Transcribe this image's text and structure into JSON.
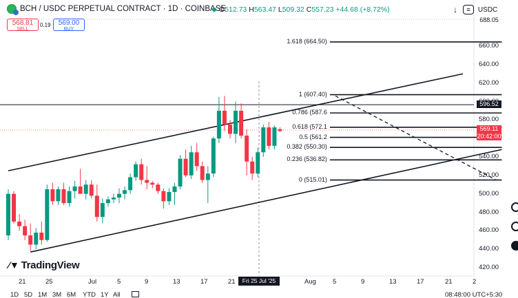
{
  "header": {
    "title": "BCH / USDC PERPETUAL CONTRACT · 1D · COINBASE",
    "open_label": "O",
    "open": "512.73",
    "high_label": "H",
    "high": "563.47",
    "low_label": "L",
    "low": "509.32",
    "close_label": "C",
    "close": "557.23",
    "change": "+44.68 (+8.72%)",
    "currency": "USDC",
    "dot_color": "#089981"
  },
  "trade": {
    "sell_price": "568.81",
    "sell_label": "SELL",
    "spread": "0.19",
    "buy_price": "569.00",
    "buy_label": "BUY"
  },
  "price_axis": {
    "ticks": [
      "660.00",
      "640.00",
      "620.00",
      "600.00",
      "580.00",
      "560.00",
      "540.00",
      "520.00",
      "500.00",
      "480.00",
      "460.00",
      "440.00",
      "420.00"
    ],
    "top_partial": "688.05",
    "hline_tag": "596.52",
    "last_price": "569.11",
    "countdown": "20:42:00"
  },
  "time_axis": {
    "labels": [
      "21",
      "25",
      "Jul",
      "5",
      "9",
      "13",
      "17",
      "21",
      "Aug",
      "5",
      "9",
      "13",
      "17",
      "21",
      "2"
    ],
    "cursor_label": "Fri 25 Jul '25"
  },
  "fib_levels": [
    {
      "label": "1.618 (664.50)",
      "price": 664.5
    },
    {
      "label": "1 (607.40)",
      "price": 607.4
    },
    {
      "label": "0.786 (587.6",
      "price": 587.6
    },
    {
      "label": "0.618 (572.1",
      "price": 572.1
    },
    {
      "label": "0.5 (561.2",
      "price": 561.2
    },
    {
      "label": "0.382 (550.30)",
      "price": 550.3
    },
    {
      "label": "0.236 (536.82)",
      "price": 536.82
    },
    {
      "label": "0 (515.01)",
      "price": 515.01
    }
  ],
  "timeframes": [
    "1D",
    "5D",
    "1M",
    "3M",
    "6M",
    "YTD",
    "1Y",
    "All"
  ],
  "footer": {
    "clock": "08:48:00 UTC+5:30"
  },
  "branding": {
    "logo_text": "TradingView"
  },
  "colors": {
    "up": "#089981",
    "down": "#f23645",
    "ink": "#131722",
    "buy": "#2962ff"
  },
  "chart_data": {
    "type": "candlestick",
    "title": "BCH / USDC PERPETUAL CONTRACT · 1D · COINBASE",
    "ylim": [
      410,
      690
    ],
    "candles": [
      {
        "o": 455,
        "h": 505,
        "l": 450,
        "c": 500
      },
      {
        "o": 500,
        "h": 503,
        "l": 468,
        "c": 470
      },
      {
        "o": 470,
        "h": 478,
        "l": 460,
        "c": 465
      },
      {
        "o": 465,
        "h": 472,
        "l": 450,
        "c": 455
      },
      {
        "o": 455,
        "h": 468,
        "l": 438,
        "c": 445
      },
      {
        "o": 445,
        "h": 463,
        "l": 440,
        "c": 458
      },
      {
        "o": 458,
        "h": 470,
        "l": 445,
        "c": 450
      },
      {
        "o": 450,
        "h": 510,
        "l": 448,
        "c": 505
      },
      {
        "o": 505,
        "h": 512,
        "l": 488,
        "c": 492
      },
      {
        "o": 492,
        "h": 508,
        "l": 488,
        "c": 505
      },
      {
        "o": 505,
        "h": 512,
        "l": 488,
        "c": 490
      },
      {
        "o": 490,
        "h": 508,
        "l": 486,
        "c": 503
      },
      {
        "o": 503,
        "h": 514,
        "l": 495,
        "c": 508
      },
      {
        "o": 508,
        "h": 527,
        "l": 500,
        "c": 500
      },
      {
        "o": 500,
        "h": 515,
        "l": 494,
        "c": 510
      },
      {
        "o": 510,
        "h": 515,
        "l": 495,
        "c": 498
      },
      {
        "o": 498,
        "h": 510,
        "l": 470,
        "c": 475
      },
      {
        "o": 475,
        "h": 495,
        "l": 468,
        "c": 490
      },
      {
        "o": 490,
        "h": 497,
        "l": 486,
        "c": 494
      },
      {
        "o": 494,
        "h": 500,
        "l": 490,
        "c": 496
      },
      {
        "o": 496,
        "h": 506,
        "l": 490,
        "c": 500
      },
      {
        "o": 500,
        "h": 508,
        "l": 494,
        "c": 504
      },
      {
        "o": 504,
        "h": 522,
        "l": 500,
        "c": 518
      },
      {
        "o": 518,
        "h": 535,
        "l": 514,
        "c": 532
      },
      {
        "o": 532,
        "h": 538,
        "l": 510,
        "c": 515
      },
      {
        "o": 515,
        "h": 530,
        "l": 505,
        "c": 512
      },
      {
        "o": 512,
        "h": 514,
        "l": 506,
        "c": 510
      },
      {
        "o": 510,
        "h": 512,
        "l": 500,
        "c": 503
      },
      {
        "o": 503,
        "h": 506,
        "l": 484,
        "c": 492
      },
      {
        "o": 492,
        "h": 506,
        "l": 488,
        "c": 502
      },
      {
        "o": 502,
        "h": 512,
        "l": 488,
        "c": 508
      },
      {
        "o": 508,
        "h": 542,
        "l": 505,
        "c": 538
      },
      {
        "o": 538,
        "h": 548,
        "l": 518,
        "c": 520
      },
      {
        "o": 520,
        "h": 552,
        "l": 516,
        "c": 545
      },
      {
        "o": 545,
        "h": 555,
        "l": 525,
        "c": 530
      },
      {
        "o": 530,
        "h": 535,
        "l": 512,
        "c": 515
      },
      {
        "o": 515,
        "h": 530,
        "l": 490,
        "c": 522
      },
      {
        "o": 522,
        "h": 562,
        "l": 518,
        "c": 560
      },
      {
        "o": 560,
        "h": 605,
        "l": 555,
        "c": 590
      },
      {
        "o": 590,
        "h": 606,
        "l": 568,
        "c": 575
      },
      {
        "o": 575,
        "h": 580,
        "l": 560,
        "c": 565
      },
      {
        "o": 565,
        "h": 600,
        "l": 555,
        "c": 590
      },
      {
        "o": 590,
        "h": 598,
        "l": 560,
        "c": 563
      },
      {
        "o": 563,
        "h": 570,
        "l": 520,
        "c": 535
      },
      {
        "o": 535,
        "h": 540,
        "l": 515,
        "c": 522
      },
      {
        "o": 522,
        "h": 550,
        "l": 518,
        "c": 545
      },
      {
        "o": 545,
        "h": 575,
        "l": 540,
        "c": 572
      },
      {
        "o": 572,
        "h": 578,
        "l": 548,
        "c": 552
      },
      {
        "o": 552,
        "h": 574,
        "l": 548,
        "c": 572
      },
      {
        "o": 570,
        "h": 572,
        "l": 567,
        "c": 568
      }
    ],
    "channel_upper": [
      [
        0,
        525
      ],
      [
        82,
        630
      ]
    ],
    "channel_lower": [
      [
        4,
        437
      ],
      [
        89,
        548
      ]
    ],
    "trendline_dashed": [
      [
        59,
        606
      ],
      [
        88,
        515
      ]
    ],
    "horizontal_line": 596.52,
    "fib_start_index": 58,
    "fib_end_index": 89
  }
}
